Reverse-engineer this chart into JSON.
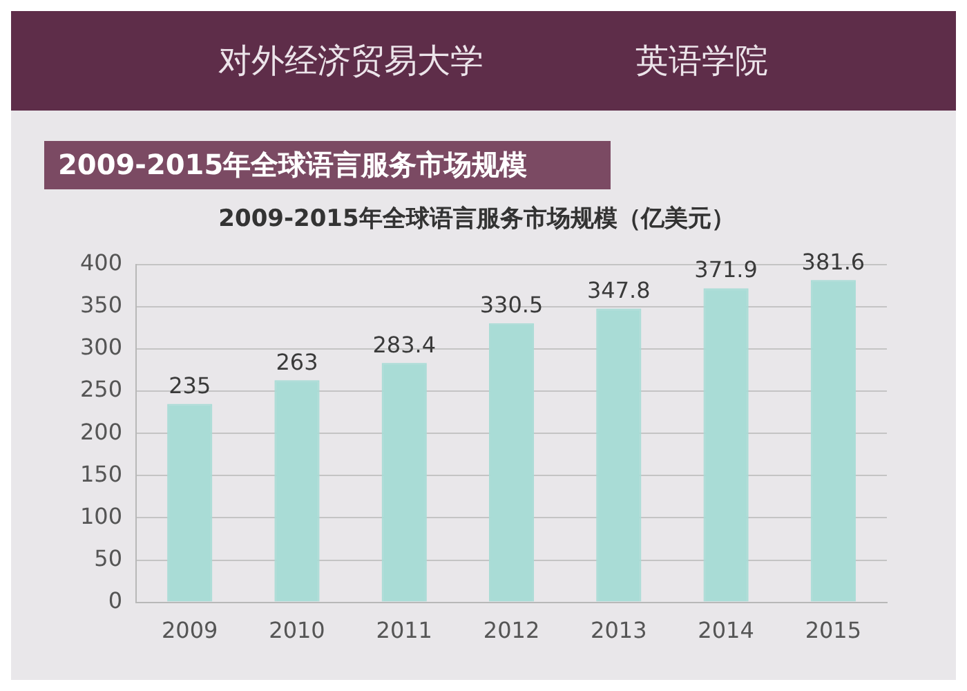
{
  "chart_data": {
    "type": "bar",
    "title": "2009-2015年全球语言服务市场规模",
    "subtitle": "2009-2015年全球语言服务市场规模（亿美元）",
    "annotations": [
      "对外经济贸易大学",
      "英语学院"
    ],
    "categories": [
      "2009",
      "2010",
      "2011",
      "2012",
      "2013",
      "2014",
      "2015"
    ],
    "values": [
      235,
      263,
      283.4,
      330.5,
      347.8,
      371.9,
      381.6
    ],
    "color": "#a9dcd6",
    "ylim": [
      0,
      400
    ],
    "yticks": [
      0,
      50,
      100,
      150,
      200,
      250,
      300,
      350,
      400
    ],
    "grid": "y",
    "data_labels": true
  }
}
